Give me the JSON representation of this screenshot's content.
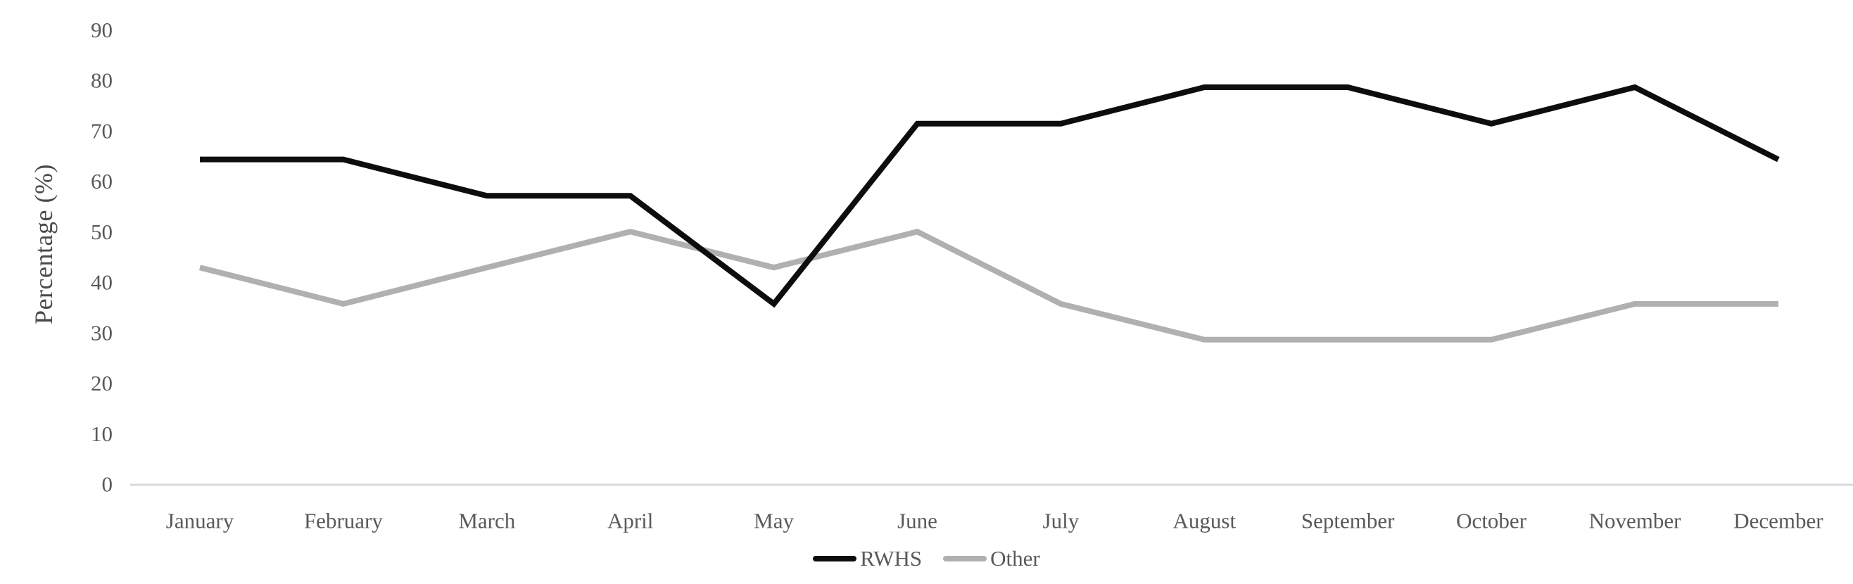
{
  "chart_data": {
    "type": "line",
    "title": "",
    "xlabel": "",
    "ylabel": "Percentage (%)",
    "categories": [
      "January",
      "February",
      "March",
      "April",
      "May",
      "June",
      "July",
      "August",
      "September",
      "October",
      "November",
      "December"
    ],
    "yticks": [
      90,
      80,
      70,
      60,
      50,
      40,
      30,
      20,
      10,
      0
    ],
    "ylim": [
      0,
      90
    ],
    "grid": false,
    "legend_position": "bottom-center",
    "series": [
      {
        "name": "RWHS",
        "color": "#0d0d0d",
        "values": [
          64.3,
          64.3,
          57.1,
          57.1,
          35.7,
          71.4,
          71.4,
          78.6,
          78.6,
          71.4,
          78.6,
          64.3
        ]
      },
      {
        "name": "Other",
        "color": "#b0b0b0",
        "values": [
          42.9,
          35.7,
          42.9,
          50.0,
          42.9,
          50.0,
          35.7,
          28.6,
          28.6,
          28.6,
          35.7,
          35.7
        ]
      }
    ],
    "colors": {
      "axis_line": "#d9d9d9",
      "tick_label": "#595959",
      "axis_title": "#4a4a4a"
    }
  }
}
